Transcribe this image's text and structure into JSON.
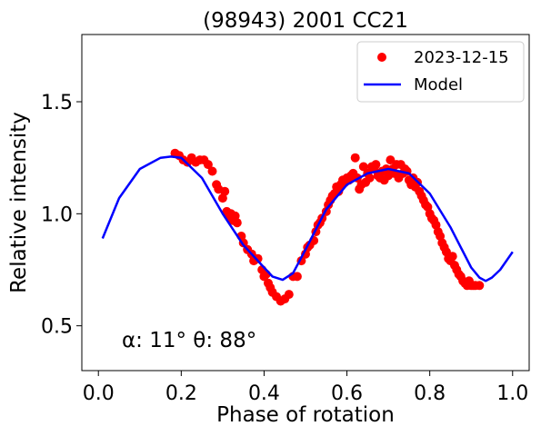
{
  "chart_data": {
    "type": "scatter",
    "title": "(98943) 2001 CC21",
    "xlabel": "Phase of rotation",
    "ylabel": "Relative intensity",
    "xlim": [
      -0.04,
      1.04
    ],
    "ylim": [
      0.3,
      1.8
    ],
    "xticks": [
      0.0,
      0.2,
      0.4,
      0.6,
      0.8,
      1.0
    ],
    "xtick_labels": [
      "0.0",
      "0.2",
      "0.4",
      "0.6",
      "0.8",
      "1.0"
    ],
    "yticks": [
      0.5,
      1.0,
      1.5
    ],
    "ytick_labels": [
      "0.5",
      "1.0",
      "1.5"
    ],
    "grid": false,
    "legend_position": "top-right",
    "annotation": "α: 11° θ: 88°",
    "series": [
      {
        "name": "2023-12-15",
        "kind": "scatter",
        "color": "#ff0000",
        "x": [
          0.185,
          0.195,
          0.205,
          0.215,
          0.225,
          0.235,
          0.245,
          0.255,
          0.265,
          0.275,
          0.285,
          0.29,
          0.3,
          0.305,
          0.31,
          0.315,
          0.32,
          0.325,
          0.33,
          0.335,
          0.345,
          0.35,
          0.36,
          0.37,
          0.375,
          0.385,
          0.395,
          0.4,
          0.405,
          0.41,
          0.415,
          0.42,
          0.43,
          0.44,
          0.45,
          0.46,
          0.47,
          0.48,
          0.49,
          0.5,
          0.505,
          0.51,
          0.52,
          0.525,
          0.53,
          0.535,
          0.54,
          0.55,
          0.555,
          0.56,
          0.565,
          0.57,
          0.575,
          0.58,
          0.585,
          0.59,
          0.595,
          0.6,
          0.605,
          0.61,
          0.615,
          0.62,
          0.625,
          0.63,
          0.635,
          0.64,
          0.645,
          0.65,
          0.655,
          0.66,
          0.665,
          0.67,
          0.675,
          0.68,
          0.685,
          0.69,
          0.695,
          0.7,
          0.705,
          0.71,
          0.715,
          0.72,
          0.725,
          0.73,
          0.735,
          0.74,
          0.745,
          0.75,
          0.755,
          0.76,
          0.765,
          0.77,
          0.775,
          0.78,
          0.785,
          0.79,
          0.795,
          0.8,
          0.805,
          0.81,
          0.815,
          0.82,
          0.825,
          0.83,
          0.835,
          0.84,
          0.845,
          0.85,
          0.855,
          0.86,
          0.865,
          0.87,
          0.875,
          0.88,
          0.885,
          0.89,
          0.895,
          0.9,
          0.905,
          0.91,
          0.92
        ],
        "y": [
          1.27,
          1.26,
          1.24,
          1.23,
          1.25,
          1.23,
          1.24,
          1.24,
          1.22,
          1.19,
          1.13,
          1.11,
          1.07,
          1.1,
          1.01,
          0.99,
          1.0,
          0.97,
          0.99,
          0.96,
          0.9,
          0.87,
          0.84,
          0.82,
          0.79,
          0.8,
          0.75,
          0.72,
          0.73,
          0.69,
          0.67,
          0.65,
          0.63,
          0.61,
          0.62,
          0.64,
          0.72,
          0.72,
          0.79,
          0.82,
          0.85,
          0.86,
          0.88,
          0.92,
          0.95,
          0.96,
          0.98,
          1.01,
          1.04,
          1.06,
          1.08,
          1.09,
          1.12,
          1.1,
          1.13,
          1.15,
          1.14,
          1.16,
          1.15,
          1.17,
          1.18,
          1.25,
          1.16,
          1.11,
          1.13,
          1.21,
          1.14,
          1.18,
          1.16,
          1.21,
          1.2,
          1.22,
          1.17,
          1.16,
          1.19,
          1.15,
          1.2,
          1.17,
          1.24,
          1.2,
          1.18,
          1.22,
          1.16,
          1.22,
          1.18,
          1.2,
          1.19,
          1.15,
          1.13,
          1.16,
          1.12,
          1.14,
          1.1,
          1.08,
          1.06,
          1.04,
          1.03,
          1.0,
          0.98,
          0.97,
          0.95,
          0.92,
          0.9,
          0.87,
          0.85,
          0.83,
          0.8,
          0.79,
          0.81,
          0.77,
          0.75,
          0.73,
          0.72,
          0.7,
          0.69,
          0.68,
          0.7,
          0.68,
          0.68,
          0.68,
          0.68
        ]
      },
      {
        "name": "Model",
        "kind": "line",
        "color": "#0000ff",
        "x": [
          0.01,
          0.05,
          0.1,
          0.15,
          0.175,
          0.2,
          0.25,
          0.3,
          0.35,
          0.4,
          0.42,
          0.445,
          0.47,
          0.5,
          0.55,
          0.6,
          0.65,
          0.7,
          0.75,
          0.8,
          0.85,
          0.9,
          0.92,
          0.935,
          0.95,
          0.97,
          1.0
        ],
        "y": [
          0.89,
          1.07,
          1.2,
          1.25,
          1.255,
          1.25,
          1.16,
          1.0,
          0.86,
          0.76,
          0.72,
          0.705,
          0.735,
          0.84,
          1.02,
          1.13,
          1.18,
          1.2,
          1.18,
          1.09,
          0.94,
          0.76,
          0.715,
          0.7,
          0.715,
          0.75,
          0.83
        ]
      }
    ]
  }
}
